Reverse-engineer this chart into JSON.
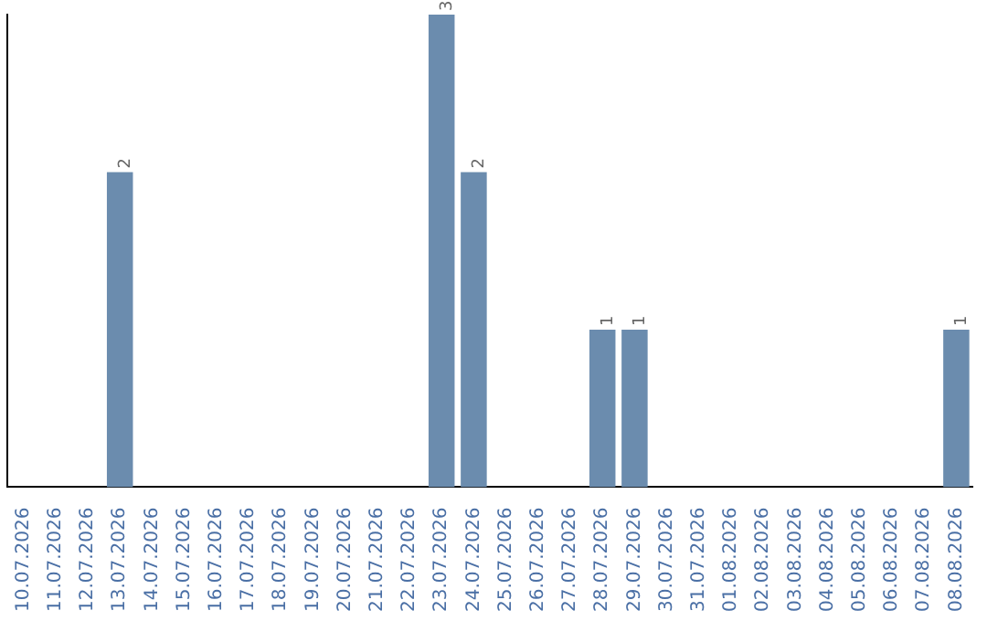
{
  "chart_data": {
    "type": "bar",
    "categories": [
      "10.07.2026",
      "11.07.2026",
      "12.07.2026",
      "13.07.2026",
      "14.07.2026",
      "15.07.2026",
      "16.07.2026",
      "17.07.2026",
      "18.07.2026",
      "19.07.2026",
      "20.07.2026",
      "21.07.2026",
      "22.07.2026",
      "23.07.2026",
      "24.07.2026",
      "25.07.2026",
      "26.07.2026",
      "27.07.2026",
      "28.07.2026",
      "29.07.2026",
      "30.07.2026",
      "31.07.2026",
      "01.08.2026",
      "02.08.2026",
      "03.08.2026",
      "04.08.2026",
      "05.08.2026",
      "06.08.2026",
      "07.08.2026",
      "08.08.2026"
    ],
    "values": [
      0,
      0,
      0,
      2,
      0,
      0,
      0,
      0,
      0,
      0,
      0,
      0,
      0,
      3,
      2,
      0,
      0,
      0,
      1,
      1,
      0,
      0,
      0,
      0,
      0,
      0,
      0,
      0,
      0,
      1
    ],
    "value_labels": [
      null,
      null,
      null,
      "2",
      null,
      null,
      null,
      null,
      null,
      null,
      null,
      null,
      null,
      "3",
      "2",
      null,
      null,
      null,
      "1",
      "1",
      null,
      null,
      null,
      null,
      null,
      null,
      null,
      null,
      null,
      "1"
    ],
    "color": "#6b8cae",
    "grid": false,
    "legend": false,
    "tick_labels": "x"
  }
}
